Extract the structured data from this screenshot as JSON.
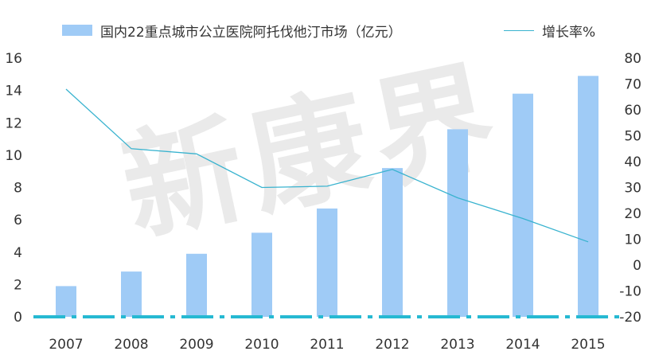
{
  "chart_data": {
    "type": "bar+line",
    "categories": [
      "2007",
      "2008",
      "2009",
      "2010",
      "2011",
      "2012",
      "2013",
      "2014",
      "2015"
    ],
    "series": [
      {
        "name": "国内22重点城市公立医院阿托伐他汀市场（亿元）",
        "type": "bar",
        "axis": "left",
        "values": [
          1.9,
          2.8,
          3.9,
          5.2,
          6.7,
          9.2,
          11.6,
          13.8,
          14.9
        ]
      },
      {
        "name": "增长率%",
        "type": "line",
        "axis": "right",
        "values": [
          68,
          45,
          43,
          30,
          30.5,
          37,
          26,
          18,
          9
        ]
      }
    ],
    "ylim_left": [
      0,
      16
    ],
    "yticks_left": [
      "0",
      "2",
      "4",
      "6",
      "8",
      "10",
      "12",
      "14",
      "16"
    ],
    "ylim_right": [
      -20,
      80
    ],
    "yticks_right": [
      "-20",
      "-10",
      "0",
      "10",
      "20",
      "30",
      "40",
      "50",
      "60",
      "70",
      "80"
    ],
    "legend_position": "top",
    "colors": {
      "bar": "#9fcbf6",
      "line": "#39b3cf",
      "zero_line": "#26b9d2"
    },
    "watermark": "新康界"
  }
}
